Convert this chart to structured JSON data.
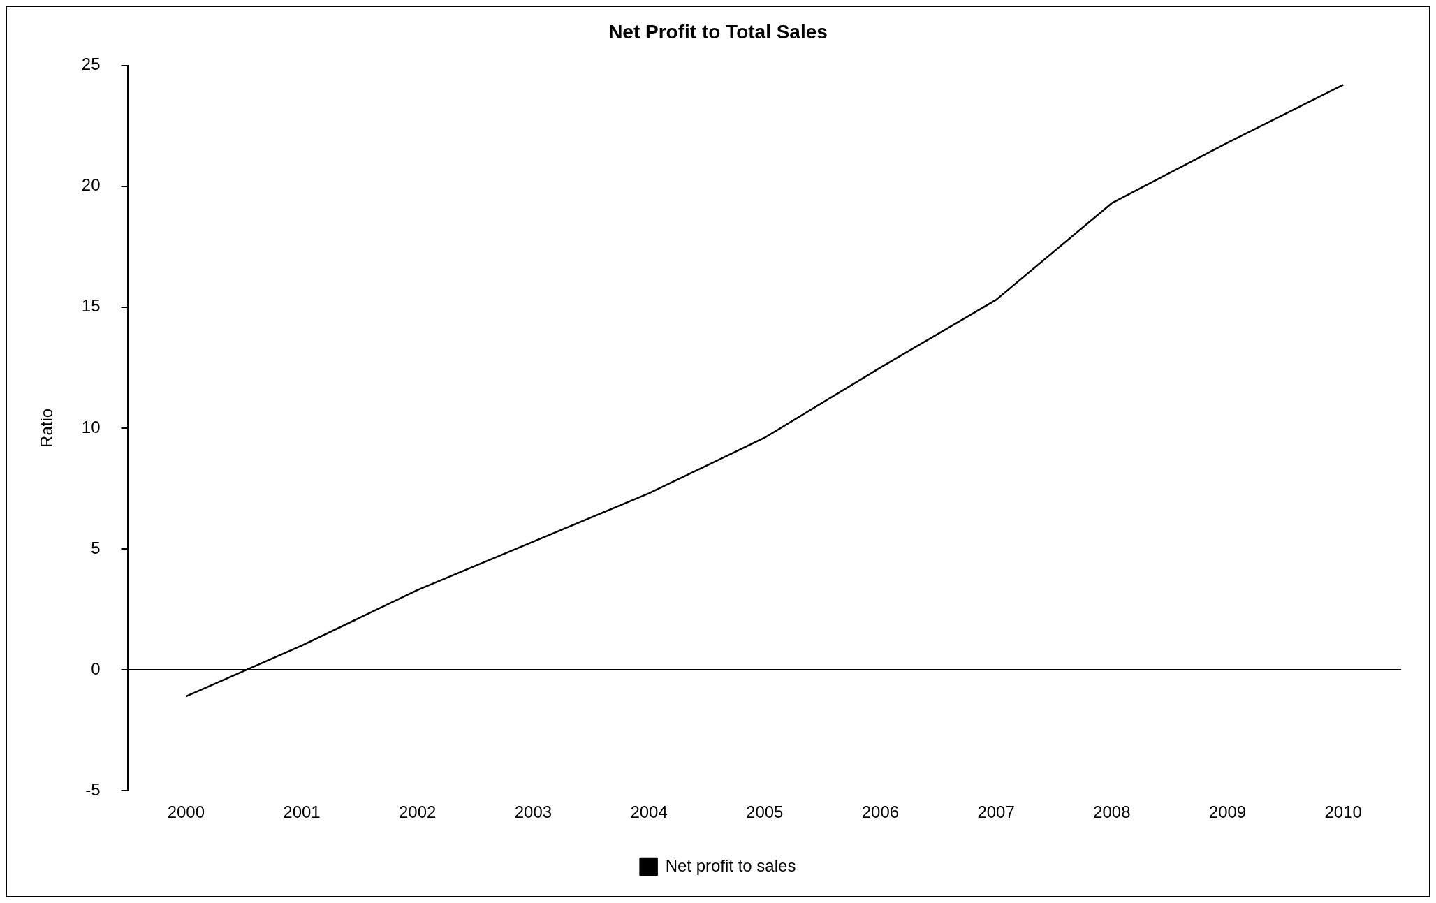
{
  "chart_data": {
    "type": "line",
    "title": "Net Profit to Total Sales",
    "ylabel": "Ratio",
    "categories": [
      "2000",
      "2001",
      "2002",
      "2003",
      "2004",
      "2005",
      "2006",
      "2007",
      "2008",
      "2009",
      "2010"
    ],
    "series": [
      {
        "name": "Net profit to sales",
        "color": "#000000",
        "values": [
          -1.1,
          1.0,
          3.3,
          5.3,
          7.3,
          9.6,
          12.5,
          15.3,
          19.3,
          21.8,
          24.2
        ]
      }
    ],
    "ylim": [
      -5,
      25
    ],
    "yticks": [
      -5,
      0,
      5,
      10,
      15,
      20,
      25
    ],
    "grid": false,
    "ref_lines": [
      {
        "axis": "y",
        "value": 0,
        "color": "#000000",
        "line_style": "solid"
      }
    ],
    "legend": "bottom",
    "marker": "none",
    "line_style": "solid"
  }
}
